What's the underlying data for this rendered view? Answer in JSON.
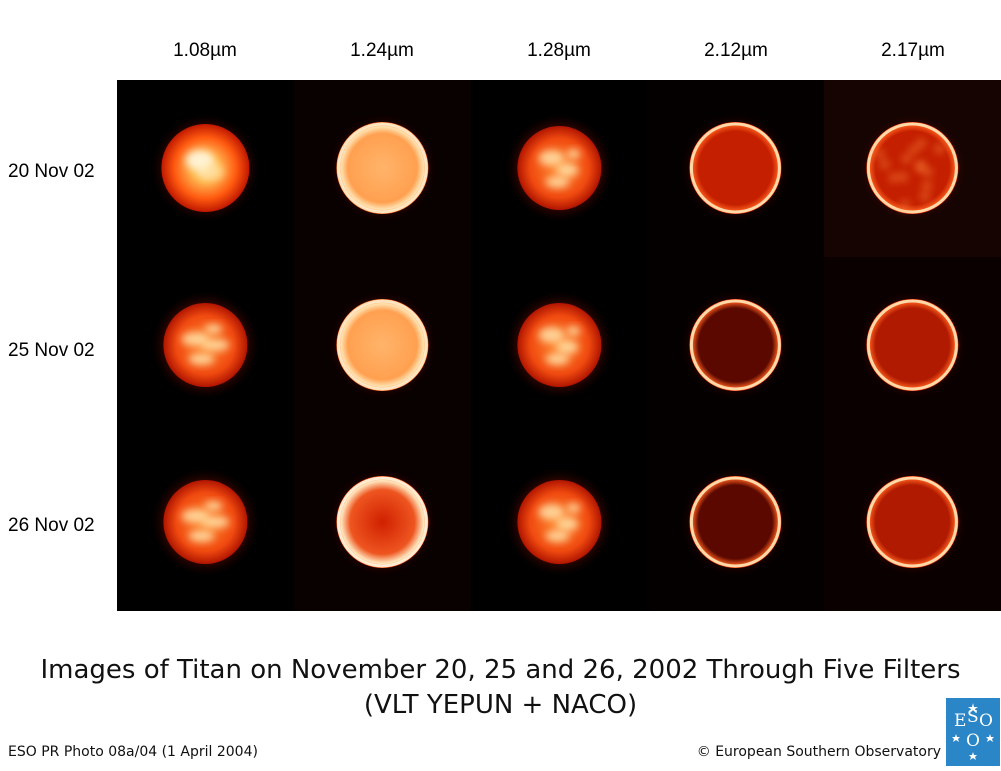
{
  "filters": [
    "1.08µm",
    "1.24µm",
    "1.28µm",
    "2.12µm",
    "2.17µm"
  ],
  "dates": [
    "20 Nov 02",
    "25 Nov 02",
    "26 Nov 02"
  ],
  "caption": {
    "line1": "Images of Titan on November 20, 25 and 26, 2002 Through Five Filters",
    "line2": "(VLT YEPUN + NACO)"
  },
  "footer": {
    "photo_id": "ESO PR Photo 08a/04 (1 April 2004)",
    "copyright": "© European Southern Observatory"
  },
  "logo": {
    "text": "ESO",
    "color": "#2a86c6"
  },
  "images": [
    [
      {
        "style": "bright-spot",
        "cell_bg": "#000000"
      },
      {
        "style": "bright-disk",
        "cell_bg": "#090000"
      },
      {
        "style": "spotted",
        "cell_bg": "#000000"
      },
      {
        "style": "ring",
        "cell_bg": "#050000"
      },
      {
        "style": "ring-mottled",
        "cell_bg": "#160402"
      }
    ],
    [
      {
        "style": "cloudy",
        "cell_bg": "#000000"
      },
      {
        "style": "bright-disk",
        "cell_bg": "#090000"
      },
      {
        "style": "spotted",
        "cell_bg": "#000000"
      },
      {
        "style": "ring-dark",
        "cell_bg": "#050000"
      },
      {
        "style": "ring-medium",
        "cell_bg": "#0a0000"
      }
    ],
    [
      {
        "style": "cloudy",
        "cell_bg": "#000000"
      },
      {
        "style": "ring-warm",
        "cell_bg": "#090000"
      },
      {
        "style": "spotted",
        "cell_bg": "#000000"
      },
      {
        "style": "ring-dark",
        "cell_bg": "#050000"
      },
      {
        "style": "ring-medium",
        "cell_bg": "#0a0000"
      }
    ]
  ]
}
